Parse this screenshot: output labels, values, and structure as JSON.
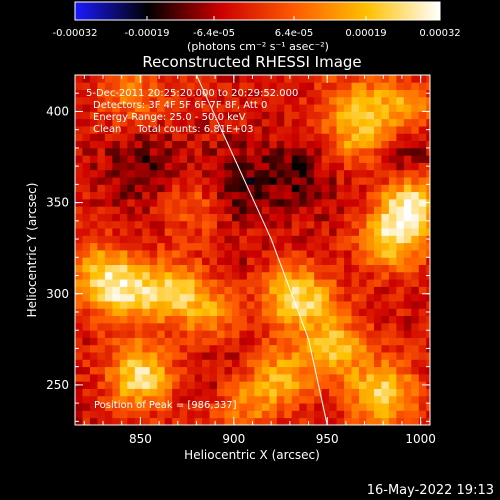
{
  "colorbar": {
    "ticks": [
      "-0.00032",
      "-0.00019",
      "-6.4e-05",
      "6.4e-05",
      "0.00019",
      "0.00032"
    ],
    "units_label": "(photons cm⁻² s⁻¹ asec⁻²)",
    "stops": [
      "#1a1aff",
      "#000000",
      "#cc0000",
      "#ff5a00",
      "#ffc000",
      "#ffffff"
    ],
    "range": [
      -0.00032,
      0.00032
    ]
  },
  "chart_data": {
    "type": "heatmap",
    "title": "Reconstructed RHESSI Image",
    "xlabel": "Heliocentric X (arcsec)",
    "ylabel": "Heliocentric Y (arcsec)",
    "xlim": [
      815,
      1005
    ],
    "ylim": [
      228,
      420
    ],
    "x_ticks": [
      "850",
      "900",
      "950",
      "1000"
    ],
    "y_ticks": [
      "250",
      "300",
      "350",
      "400"
    ],
    "grid": false,
    "annotations": [
      "5-Dec-2011 20:25:20.000 to 20:29:52.000",
      "Detectors: 3F 4F 5F 6F 7F 8F, Att 0",
      "Energy Range: 25.0 - 50.0 keV",
      "Clean     Total counts: 6.81E+03"
    ],
    "peak_label": "Position of Peak = [986,337]",
    "peak_position": [
      986,
      337
    ],
    "limb_curve": {
      "x": [
        880,
        900,
        920,
        940,
        950
      ],
      "y": [
        420,
        375,
        330,
        275,
        228
      ]
    },
    "hot_regions": [
      {
        "x": 845,
        "y": 300,
        "value": 0.0002
      },
      {
        "x": 830,
        "y": 310,
        "value": 0.00024
      },
      {
        "x": 868,
        "y": 302,
        "value": 0.00022
      },
      {
        "x": 850,
        "y": 255,
        "value": 0.0003
      },
      {
        "x": 890,
        "y": 290,
        "value": 0.00018
      },
      {
        "x": 925,
        "y": 300,
        "value": 0.0002
      },
      {
        "x": 940,
        "y": 295,
        "value": 0.00019
      },
      {
        "x": 905,
        "y": 240,
        "value": 0.00016
      },
      {
        "x": 925,
        "y": 255,
        "value": 0.0002
      },
      {
        "x": 980,
        "y": 245,
        "value": 0.00028
      },
      {
        "x": 955,
        "y": 270,
        "value": 0.00022
      },
      {
        "x": 995,
        "y": 350,
        "value": 0.00032
      },
      {
        "x": 985,
        "y": 330,
        "value": 0.00025
      },
      {
        "x": 965,
        "y": 385,
        "value": 0.00018
      },
      {
        "x": 990,
        "y": 400,
        "value": 0.0002
      },
      {
        "x": 965,
        "y": 405,
        "value": 0.00015
      },
      {
        "x": 845,
        "y": 410,
        "value": 0.00014
      },
      {
        "x": 880,
        "y": 350,
        "value": 0.00012
      }
    ],
    "cold_regions": [
      {
        "x": 850,
        "y": 370,
        "value": -0.0001
      },
      {
        "x": 900,
        "y": 360,
        "value": -0.00012
      },
      {
        "x": 935,
        "y": 365,
        "value": -0.0001
      },
      {
        "x": 990,
        "y": 375,
        "value": -0.00012
      },
      {
        "x": 910,
        "y": 300,
        "value": -8e-05
      },
      {
        "x": 895,
        "y": 255,
        "value": -6e-05
      }
    ]
  },
  "footer": {
    "timestamp": "16-May-2022 19:13"
  }
}
